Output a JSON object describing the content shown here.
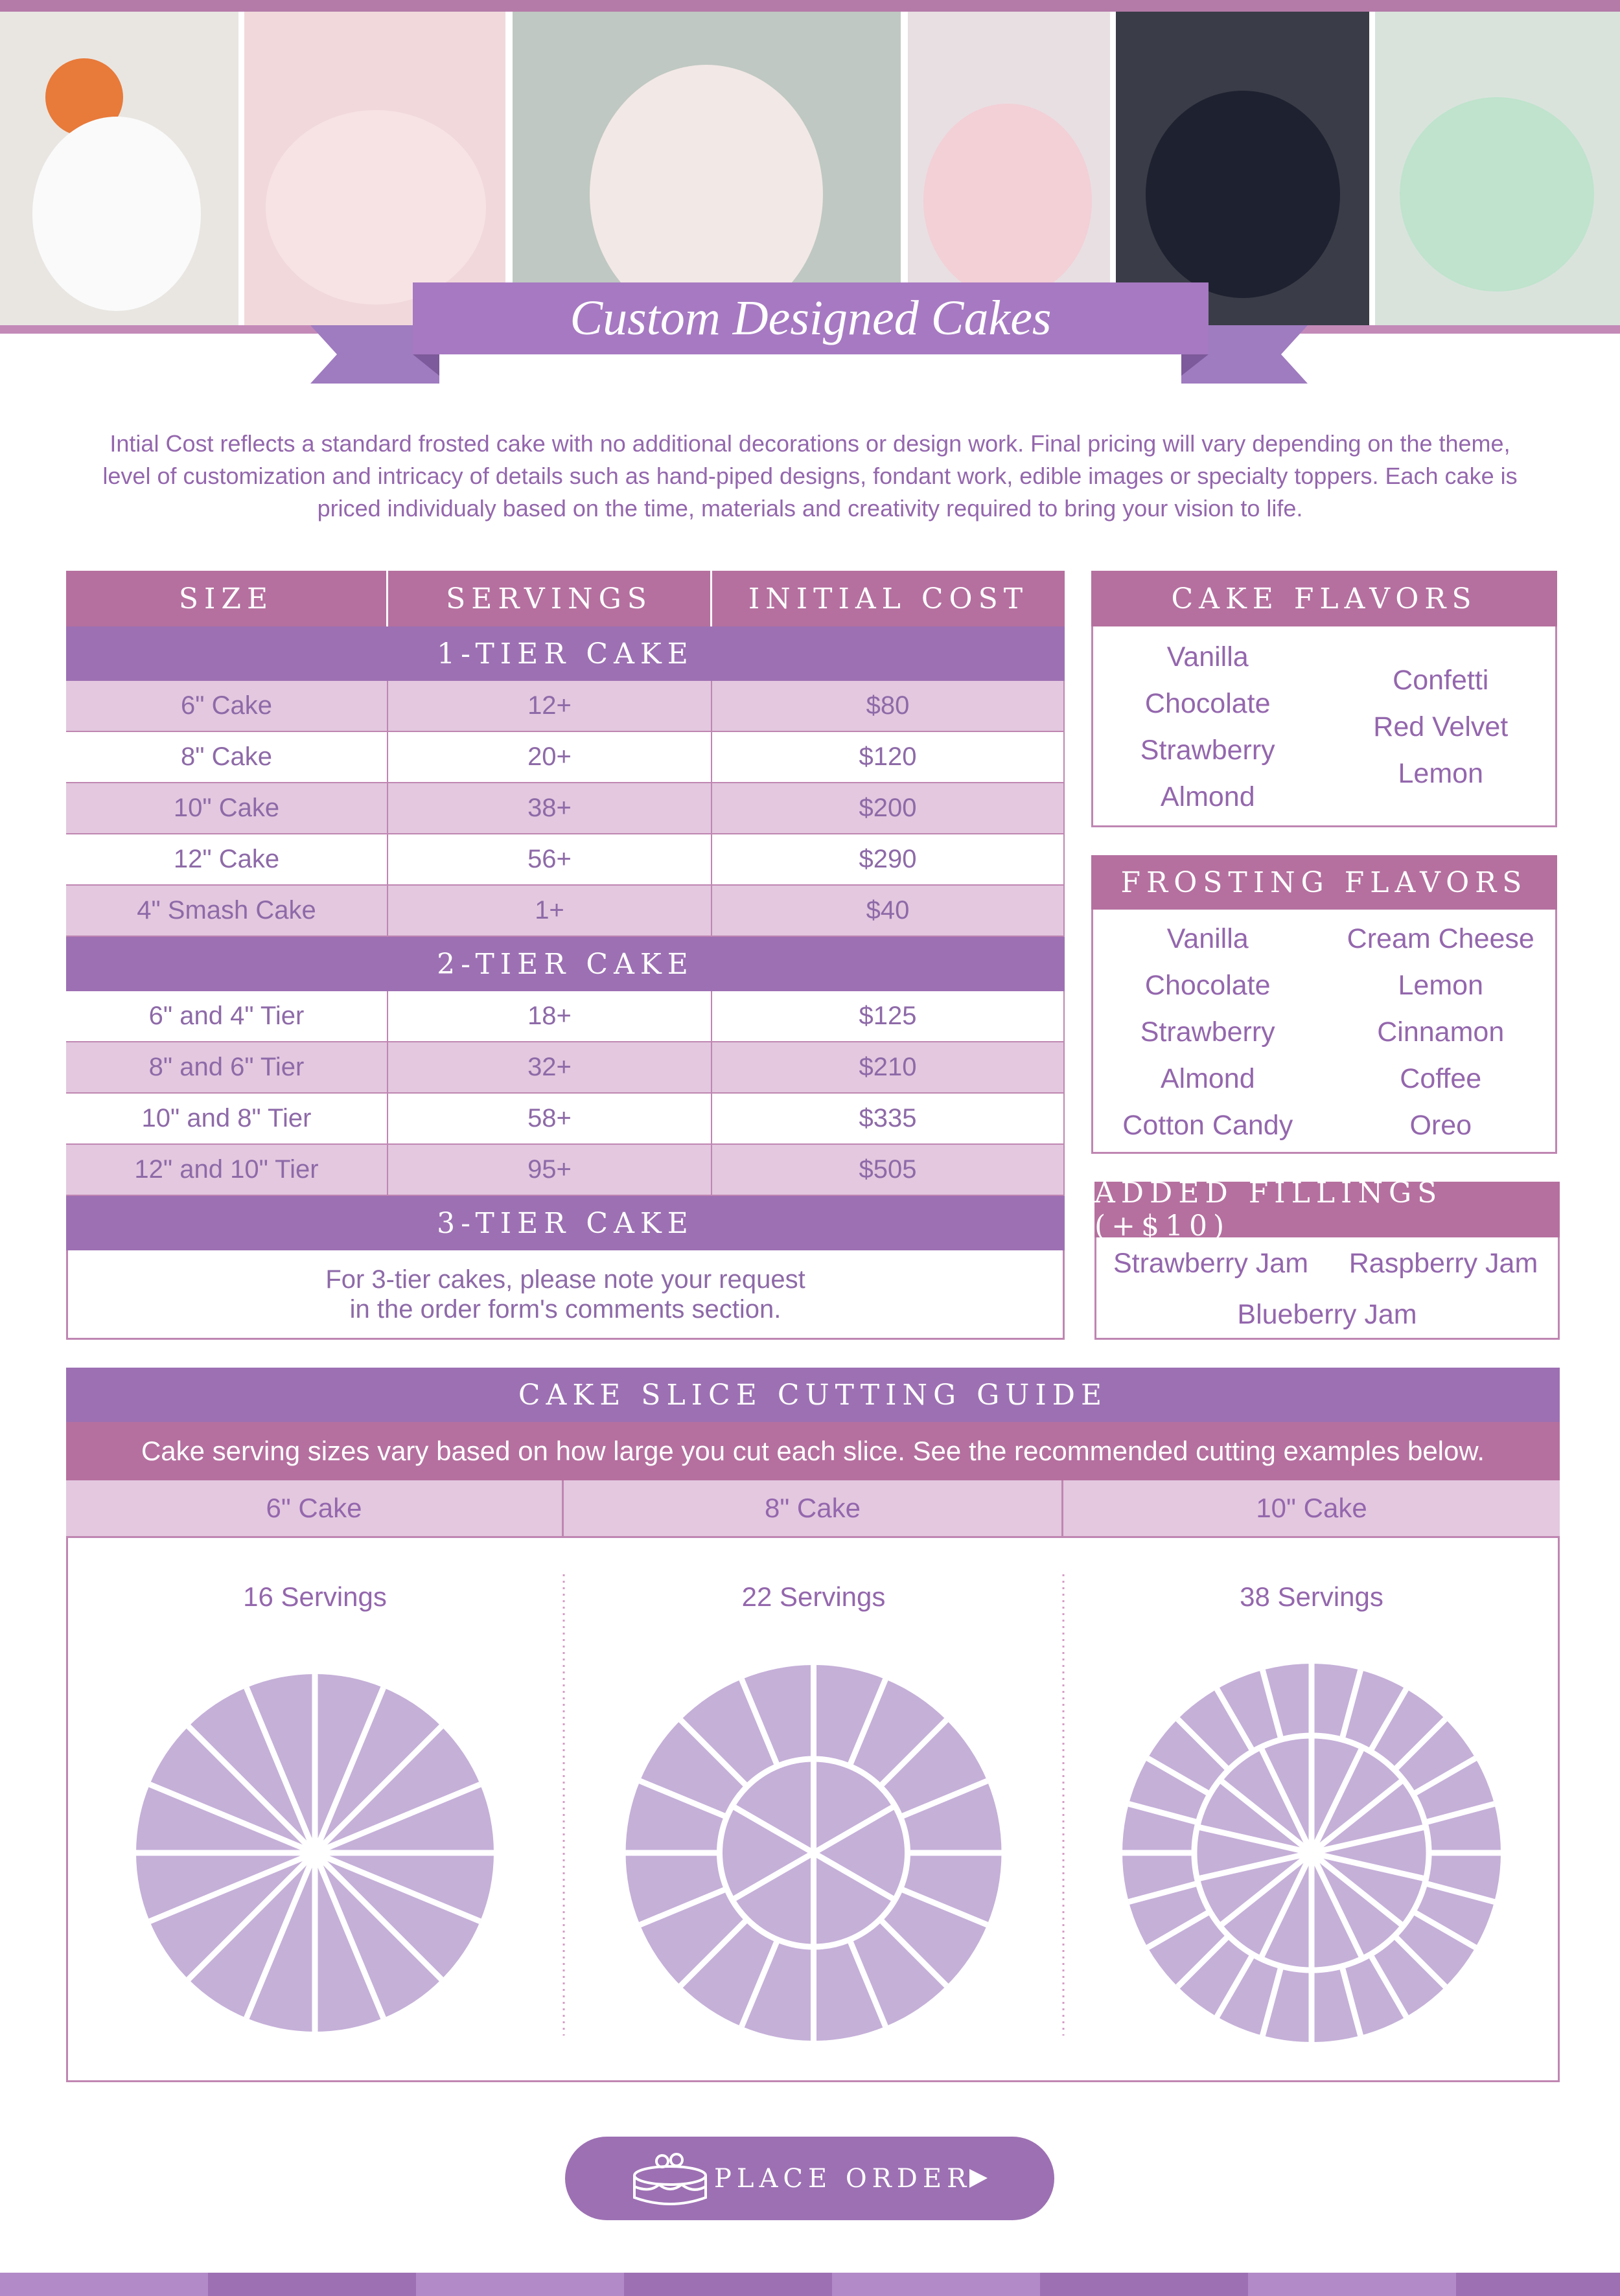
{
  "header": {
    "title": "Custom Designed Cakes"
  },
  "intro": "Intial Cost reflects a standard frosted cake with no additional decorations or design work. Final pricing will vary depending on the theme, level of customization and intricacy of details such as hand-piped designs, fondant work, edible images or specialty toppers. Each cake is priced individualy based on the time, materials and creativity required to bring your vision to life.",
  "price_table": {
    "columns": [
      "SIZE",
      "SERVINGS",
      "INITIAL COST"
    ],
    "sections": [
      {
        "title": "1-TIER CAKE",
        "rows": [
          [
            "6\" Cake",
            "12+",
            "$80"
          ],
          [
            "8\" Cake",
            "20+",
            "$120"
          ],
          [
            "10\" Cake",
            "38+",
            "$200"
          ],
          [
            "12\" Cake",
            "56+",
            "$290"
          ],
          [
            "4\" Smash Cake",
            "1+",
            "$40"
          ]
        ]
      },
      {
        "title": "2-TIER CAKE",
        "rows": [
          [
            "6\" and 4\" Tier",
            "18+",
            "$125"
          ],
          [
            "8\" and 6\" Tier",
            "32+",
            "$210"
          ],
          [
            "10\" and 8\" Tier",
            "58+",
            "$335"
          ],
          [
            "12\" and 10\" Tier",
            "95+",
            "$505"
          ]
        ]
      },
      {
        "title": "3-TIER CAKE",
        "note": [
          "For 3-tier cakes, please note your request",
          "in the order form's comments section."
        ]
      }
    ]
  },
  "cake_flavors": {
    "title": "CAKE FLAVORS",
    "left": [
      "Vanilla",
      "Chocolate",
      "Strawberry",
      "Almond"
    ],
    "right": [
      "Confetti",
      "Red Velvet",
      "Lemon"
    ]
  },
  "frosting_flavors": {
    "title": "FROSTING FLAVORS",
    "left": [
      "Vanilla",
      "Chocolate",
      "Strawberry",
      "Almond",
      "Cotton Candy"
    ],
    "right": [
      "Cream Cheese",
      "Lemon",
      "Cinnamon",
      "Coffee",
      "Oreo"
    ]
  },
  "fillings": {
    "title": "ADDED FILLINGS (+$10)",
    "items": [
      "Strawberry Jam",
      "Raspberry Jam",
      "Blueberry Jam"
    ]
  },
  "cutting_guide": {
    "title": "CAKE SLICE CUTTING GUIDE",
    "subtitle": "Cake serving sizes vary based on how large you cut each slice. See the recommended cutting examples below.",
    "cakes": [
      {
        "size": "6\" Cake",
        "servings": "16 Servings"
      },
      {
        "size": "8\" Cake",
        "servings": "22 Servings"
      },
      {
        "size": "10\" Cake",
        "servings": "38 Servings"
      }
    ]
  },
  "button": "PLACE ORDER"
}
